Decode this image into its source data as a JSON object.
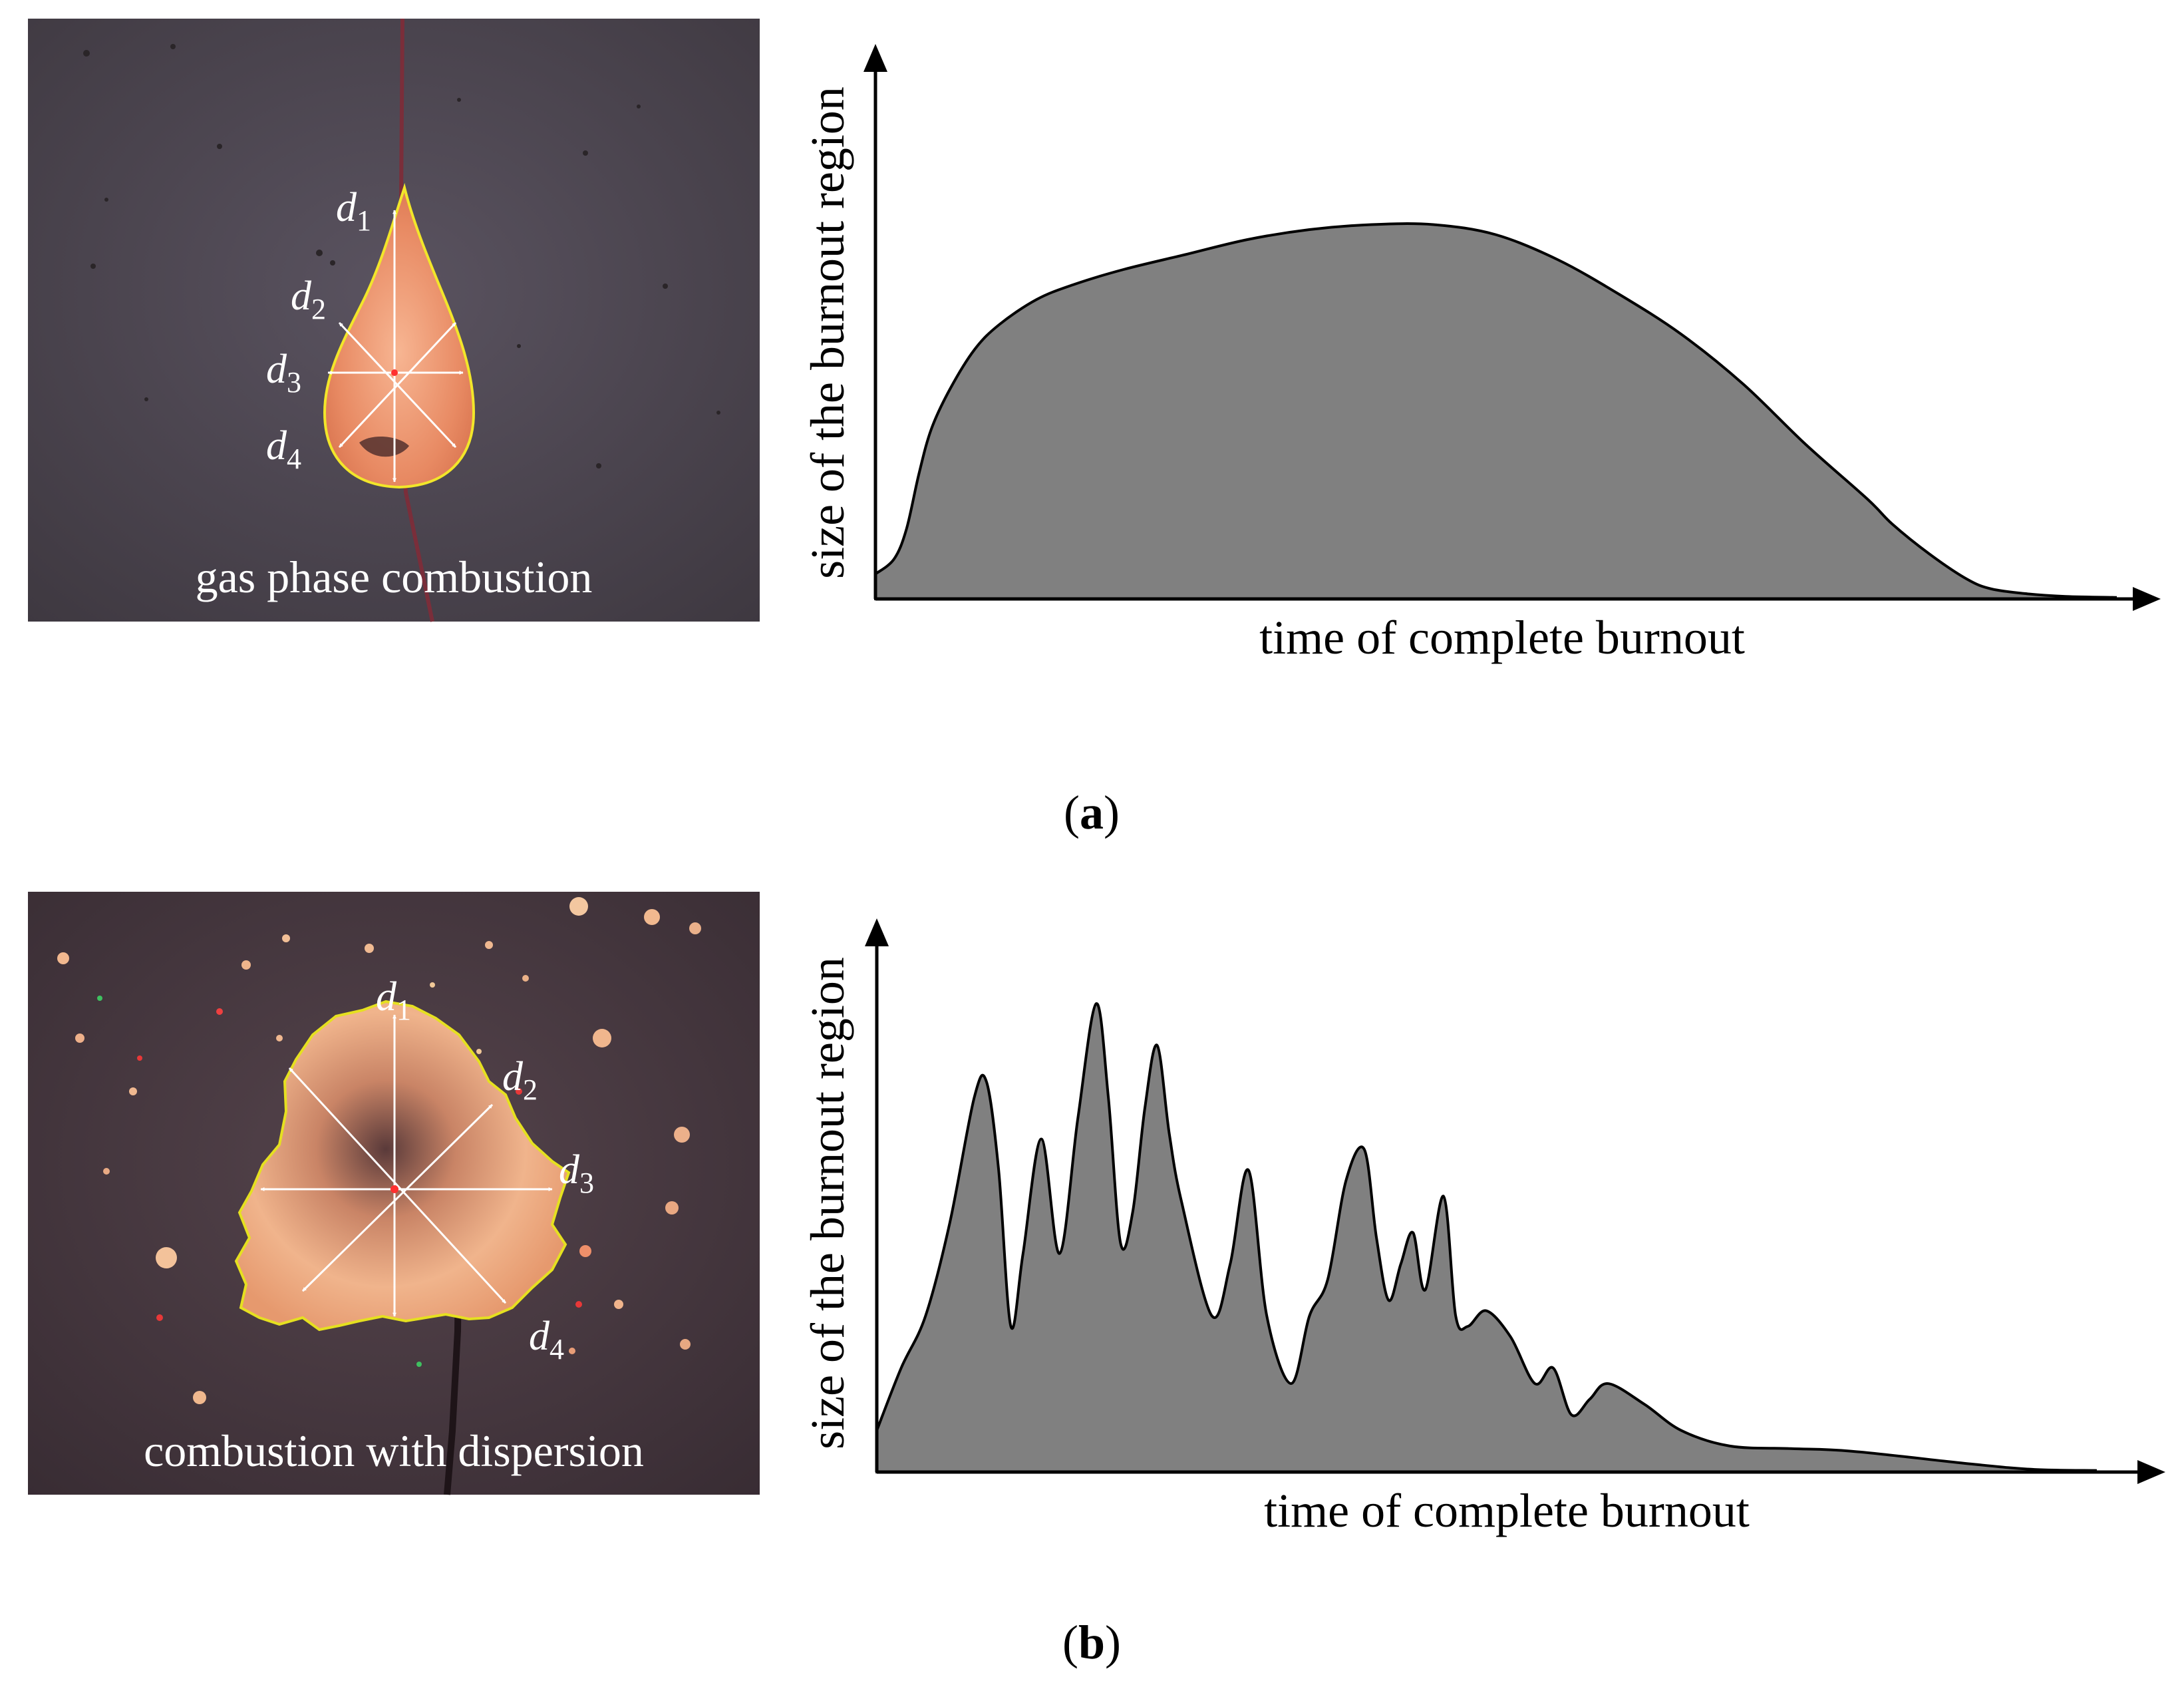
{
  "panels": [
    {
      "id": "a",
      "label_prefix": "(",
      "label_letter": "a",
      "label_suffix": ")",
      "photo": {
        "caption": "gas phase combustion",
        "diameter_labels": [
          {
            "letter": "d",
            "sub": "1"
          },
          {
            "letter": "d",
            "sub": "2"
          },
          {
            "letter": "d",
            "sub": "3"
          },
          {
            "letter": "d",
            "sub": "4"
          }
        ],
        "colors": {
          "background": "#4f4750",
          "flame": "#e8906b",
          "contour": "#f2e62a"
        }
      },
      "chart": {
        "ylabel": "size of the burnout region",
        "xlabel": "time of complete burnout"
      }
    },
    {
      "id": "b",
      "label_prefix": "(",
      "label_letter": "b",
      "label_suffix": ")",
      "photo": {
        "caption": "combustion with dispersion",
        "diameter_labels": [
          {
            "letter": "d",
            "sub": "1"
          },
          {
            "letter": "d",
            "sub": "2"
          },
          {
            "letter": "d",
            "sub": "3"
          },
          {
            "letter": "d",
            "sub": "4"
          }
        ],
        "colors": {
          "background": "#4d3e45",
          "flame": "#e9a27a",
          "contour": "#e5e020"
        }
      },
      "chart": {
        "ylabel": "size of the burnout region",
        "xlabel": "time of complete burnout"
      }
    }
  ],
  "chart_data": [
    {
      "type": "area",
      "title": "",
      "xlabel": "time of complete burnout",
      "ylabel": "size of the burnout region",
      "xlim": [
        0,
        100
      ],
      "ylim": [
        0,
        100
      ],
      "grid": false,
      "fill_color": "#808080",
      "line_color": "#000000",
      "x": [
        0,
        1.5,
        2.5,
        3.5,
        4.5,
        6,
        8,
        10,
        13,
        16,
        20,
        25,
        30,
        35,
        40,
        45,
        50,
        55,
        60,
        65,
        70,
        75,
        80,
        82,
        85,
        88,
        90,
        93,
        96,
        100
      ],
      "y": [
        5,
        8,
        14,
        25,
        34,
        42,
        50,
        55,
        60,
        63,
        66,
        69,
        72,
        74,
        75,
        75,
        73,
        68,
        61,
        53,
        43,
        31,
        20,
        15,
        9,
        4,
        2,
        1,
        0.5,
        0.3
      ]
    },
    {
      "type": "area",
      "title": "",
      "xlabel": "time of complete burnout",
      "ylabel": "size of the burnout region",
      "xlim": [
        0,
        100
      ],
      "ylim": [
        0,
        100
      ],
      "grid": false,
      "fill_color": "#808080",
      "line_color": "#000000",
      "x": [
        0,
        2,
        4,
        6,
        8,
        9,
        10,
        11,
        12,
        13.5,
        15,
        16.5,
        18,
        19,
        20,
        21,
        22,
        23,
        24,
        25,
        27.5,
        29,
        30.5,
        32,
        34,
        35.5,
        37,
        38.5,
        40,
        41,
        42,
        43,
        44,
        45,
        46.5,
        47.5,
        48.5,
        50,
        52,
        54,
        55.5,
        57,
        58.5,
        60,
        63,
        66,
        70,
        75,
        80,
        90,
        95,
        100
      ],
      "y": [
        8,
        20,
        30,
        48,
        72,
        75,
        58,
        28,
        42,
        64,
        42,
        68,
        90,
        72,
        44,
        50,
        70,
        82,
        65,
        52,
        30,
        40,
        58,
        30,
        17,
        30,
        37,
        56,
        62,
        45,
        33,
        40,
        46,
        35,
        53,
        30,
        28,
        31,
        26,
        17,
        20,
        11,
        14,
        17,
        13,
        8,
        5,
        4.5,
        4,
        1.5,
        0.5,
        0.3
      ]
    }
  ]
}
